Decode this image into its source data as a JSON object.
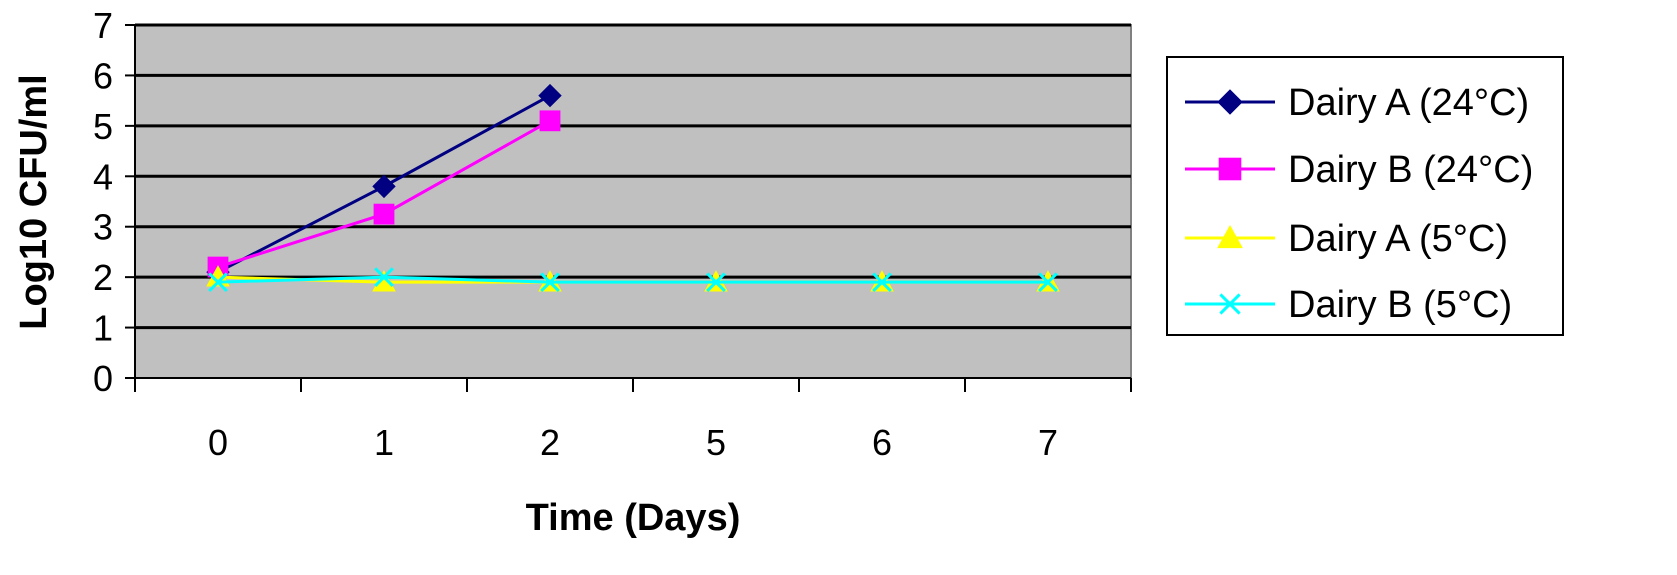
{
  "chart_data": {
    "type": "line",
    "title": "",
    "xlabel": "Time (Days)",
    "ylabel": "Log10 CFU/ml",
    "categories": [
      "0",
      "1",
      "2",
      "5",
      "6",
      "7"
    ],
    "ylim": [
      0,
      7
    ],
    "yticks": [
      "0",
      "1",
      "2",
      "3",
      "4",
      "5",
      "6",
      "7"
    ],
    "grid": "horizontal",
    "plot_background": "#C0C0C0",
    "legend_position": "right",
    "series": [
      {
        "name": "Dairy A (24°C)",
        "color": "#000080",
        "marker": "diamond",
        "values": [
          2.1,
          3.8,
          5.6,
          null,
          null,
          null
        ]
      },
      {
        "name": "Dairy B (24°C)",
        "color": "#FF00FF",
        "marker": "square",
        "values": [
          2.2,
          3.25,
          5.1,
          null,
          null,
          null
        ]
      },
      {
        "name": "Dairy A (5°C)",
        "color": "#FFFF00",
        "marker": "triangle",
        "values": [
          2.0,
          1.9,
          1.9,
          1.9,
          1.9,
          1.9
        ]
      },
      {
        "name": "Dairy B (5°C)",
        "color": "#00FFFF",
        "marker": "x",
        "values": [
          1.9,
          2.0,
          1.9,
          1.9,
          1.9,
          1.9
        ]
      }
    ]
  }
}
